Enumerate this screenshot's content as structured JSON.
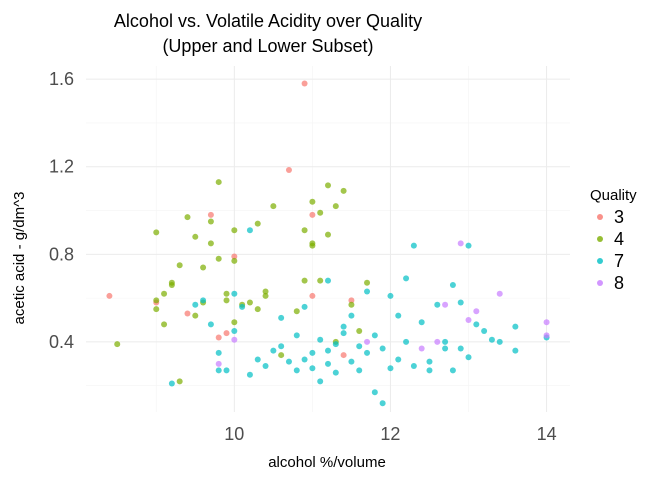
{
  "chart_data": {
    "type": "scatter",
    "title_lines": [
      "Alcohol vs. Volatile Acidity over Quality",
      "(Upper and Lower Subset)"
    ],
    "xlabel": "alcohol %/volume",
    "ylabel": "acetic acid - g/dm^3",
    "xlim": [
      8.1,
      14.3
    ],
    "ylim": [
      0.08,
      1.66
    ],
    "x_ticks": [
      10,
      12,
      14
    ],
    "x_tick_labels": [
      "10",
      "12",
      "14"
    ],
    "y_ticks": [
      0.4,
      0.8,
      1.2,
      1.6
    ],
    "y_tick_labels": [
      "0.4",
      "0.8",
      "1.2",
      "1.6"
    ],
    "grid": true,
    "legend": {
      "title": "Quality",
      "position": "right"
    },
    "series": [
      {
        "name": "3",
        "color": "#F8766D",
        "points": [
          [
            8.4,
            0.61
          ],
          [
            9.0,
            0.58
          ],
          [
            9.7,
            0.98
          ],
          [
            9.8,
            0.42
          ],
          [
            9.9,
            0.44
          ],
          [
            10.0,
            0.79
          ],
          [
            10.7,
            1.185
          ],
          [
            10.9,
            1.58
          ],
          [
            11.0,
            0.98
          ],
          [
            11.0,
            0.61
          ],
          [
            11.4,
            0.34
          ],
          [
            11.5,
            0.59
          ],
          [
            9.4,
            0.53
          ]
        ]
      },
      {
        "name": "4",
        "color": "#7CAE00",
        "points": [
          [
            9.0,
            0.59
          ],
          [
            9.0,
            0.55
          ],
          [
            9.1,
            0.48
          ],
          [
            9.1,
            0.62
          ],
          [
            9.2,
            0.66
          ],
          [
            9.2,
            0.67
          ],
          [
            9.3,
            0.75
          ],
          [
            9.4,
            0.97
          ],
          [
            9.5,
            0.88
          ],
          [
            9.5,
            0.52
          ],
          [
            9.6,
            0.58
          ],
          [
            9.6,
            0.74
          ],
          [
            9.7,
            0.95
          ],
          [
            9.7,
            0.85
          ],
          [
            9.8,
            1.13
          ],
          [
            9.8,
            0.78
          ],
          [
            9.9,
            0.62
          ],
          [
            9.9,
            0.59
          ],
          [
            10.0,
            0.91
          ],
          [
            10.0,
            0.77
          ],
          [
            10.0,
            0.49
          ],
          [
            10.1,
            0.57
          ],
          [
            10.2,
            0.58
          ],
          [
            10.3,
            0.55
          ],
          [
            10.4,
            0.61
          ],
          [
            10.4,
            0.63
          ],
          [
            10.5,
            1.02
          ],
          [
            10.6,
            0.34
          ],
          [
            10.8,
            0.54
          ],
          [
            10.9,
            0.91
          ],
          [
            10.9,
            0.68
          ],
          [
            11.0,
            1.04
          ],
          [
            11.0,
            0.85
          ],
          [
            11.0,
            0.84
          ],
          [
            11.1,
            0.68
          ],
          [
            11.1,
            0.99
          ],
          [
            11.2,
            1.115
          ],
          [
            11.2,
            0.89
          ],
          [
            11.3,
            1.02
          ],
          [
            11.3,
            0.4
          ],
          [
            11.4,
            1.09
          ],
          [
            11.5,
            0.57
          ],
          [
            11.6,
            0.45
          ],
          [
            11.7,
            0.67
          ],
          [
            8.5,
            0.39
          ],
          [
            9.3,
            0.22
          ],
          [
            9.0,
            0.9
          ],
          [
            10.3,
            0.94
          ]
        ]
      },
      {
        "name": "7",
        "color": "#00BFC4",
        "points": [
          [
            9.2,
            0.21
          ],
          [
            9.5,
            0.57
          ],
          [
            9.6,
            0.59
          ],
          [
            9.7,
            0.48
          ],
          [
            9.8,
            0.35
          ],
          [
            9.9,
            0.27
          ],
          [
            10.0,
            0.62
          ],
          [
            10.0,
            0.45
          ],
          [
            10.1,
            0.56
          ],
          [
            10.2,
            0.25
          ],
          [
            10.3,
            0.32
          ],
          [
            10.4,
            0.29
          ],
          [
            10.5,
            0.36
          ],
          [
            10.6,
            0.51
          ],
          [
            10.7,
            0.31
          ],
          [
            10.8,
            0.27
          ],
          [
            10.8,
            0.43
          ],
          [
            10.9,
            0.32
          ],
          [
            10.9,
            0.56
          ],
          [
            11.0,
            0.35
          ],
          [
            11.0,
            0.28
          ],
          [
            11.1,
            0.41
          ],
          [
            11.1,
            0.22
          ],
          [
            11.2,
            0.36
          ],
          [
            11.2,
            0.3
          ],
          [
            11.3,
            0.39
          ],
          [
            11.3,
            0.26
          ],
          [
            11.4,
            0.44
          ],
          [
            11.5,
            0.31
          ],
          [
            11.5,
            0.52
          ],
          [
            11.6,
            0.38
          ],
          [
            11.6,
            0.27
          ],
          [
            11.7,
            0.63
          ],
          [
            11.7,
            0.35
          ],
          [
            11.8,
            0.43
          ],
          [
            11.8,
            0.17
          ],
          [
            11.9,
            0.12
          ],
          [
            11.9,
            0.37
          ],
          [
            12.0,
            0.28
          ],
          [
            12.0,
            0.61
          ],
          [
            12.1,
            0.52
          ],
          [
            12.1,
            0.32
          ],
          [
            12.2,
            0.4
          ],
          [
            12.3,
            0.84
          ],
          [
            12.3,
            0.29
          ],
          [
            12.4,
            0.49
          ],
          [
            12.5,
            0.31
          ],
          [
            12.5,
            0.27
          ],
          [
            12.6,
            0.57
          ],
          [
            12.7,
            0.4
          ],
          [
            12.7,
            0.37
          ],
          [
            12.8,
            0.66
          ],
          [
            12.8,
            0.27
          ],
          [
            12.9,
            0.37
          ],
          [
            12.9,
            0.58
          ],
          [
            13.0,
            0.84
          ],
          [
            13.0,
            0.33
          ],
          [
            13.1,
            0.48
          ],
          [
            13.2,
            0.45
          ],
          [
            13.3,
            0.41
          ],
          [
            13.4,
            0.4
          ],
          [
            13.6,
            0.47
          ],
          [
            13.6,
            0.36
          ],
          [
            14.0,
            0.42
          ],
          [
            10.2,
            0.91
          ],
          [
            11.2,
            0.68
          ],
          [
            12.2,
            0.69
          ],
          [
            9.8,
            0.27
          ],
          [
            10.6,
            0.38
          ],
          [
            11.4,
            0.47
          ]
        ]
      },
      {
        "name": "8",
        "color": "#C77CFF",
        "points": [
          [
            9.8,
            0.3
          ],
          [
            10.0,
            0.41
          ],
          [
            11.7,
            0.4
          ],
          [
            12.4,
            0.37
          ],
          [
            12.6,
            0.4
          ],
          [
            12.7,
            0.57
          ],
          [
            12.9,
            0.85
          ],
          [
            13.0,
            0.5
          ],
          [
            13.1,
            0.54
          ],
          [
            13.4,
            0.62
          ],
          [
            14.0,
            0.49
          ],
          [
            14.0,
            0.43
          ]
        ]
      }
    ]
  }
}
